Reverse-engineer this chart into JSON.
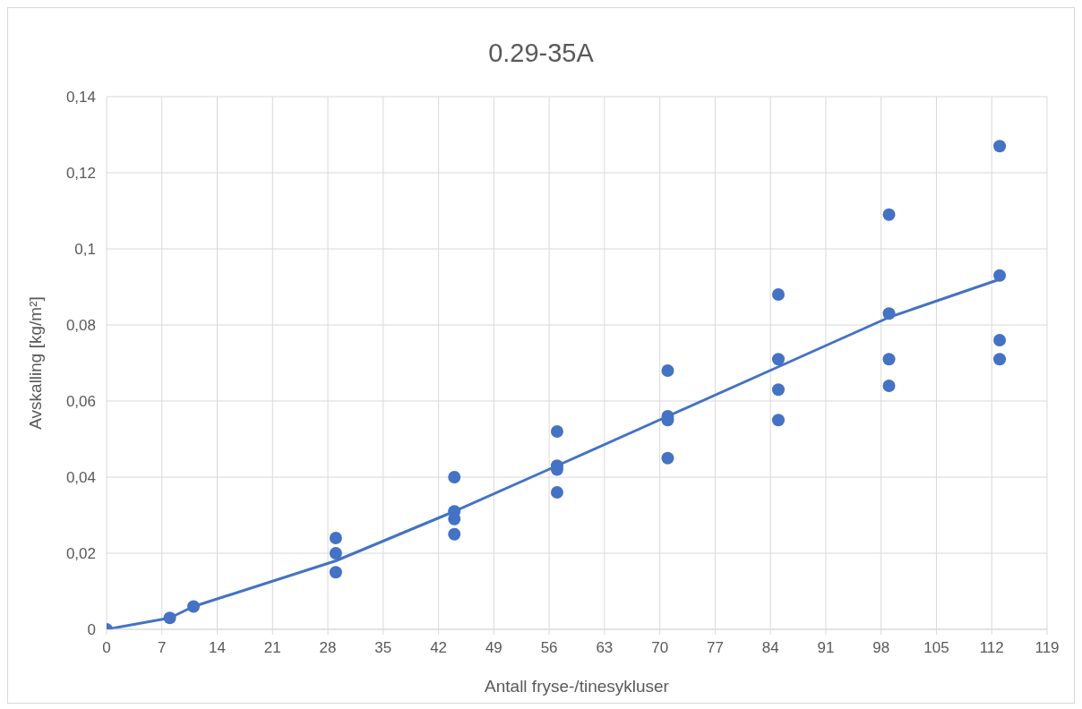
{
  "chart_data": {
    "type": "scatter",
    "title": "0.29-35A",
    "xlabel": "Antall fryse-/tinesykluser",
    "ylabel": "Avskalling [kg/m²]",
    "series": [
      {
        "type": "line",
        "color": "#4472c4",
        "x": [
          0,
          8,
          11,
          29,
          44,
          57,
          71,
          85,
          99,
          113
        ],
        "values": [
          0,
          0.003,
          0.006,
          0.018,
          0.031,
          0.043,
          0.056,
          0.069,
          0.082,
          0.092
        ]
      },
      {
        "color": "#4472c4",
        "marker": "circle",
        "x": [
          0,
          8,
          11,
          29,
          29,
          29,
          44,
          44,
          44,
          44,
          57,
          57,
          57,
          57,
          71,
          71,
          71,
          71,
          85,
          85,
          85,
          85,
          99,
          99,
          99,
          99,
          113,
          113,
          113,
          113
        ],
        "values": [
          0,
          0.003,
          0.006,
          0.024,
          0.02,
          0.015,
          0.04,
          0.031,
          0.029,
          0.025,
          0.052,
          0.043,
          0.042,
          0.036,
          0.068,
          0.056,
          0.055,
          0.045,
          0.088,
          0.071,
          0.063,
          0.055,
          0.109,
          0.083,
          0.071,
          0.064,
          0.127,
          0.093,
          0.076,
          0.071
        ]
      }
    ],
    "xlim": [
      0,
      119
    ],
    "xticks": [
      0,
      7,
      14,
      21,
      28,
      35,
      42,
      49,
      56,
      63,
      70,
      77,
      84,
      91,
      98,
      105,
      112,
      119
    ],
    "ylim": [
      0,
      0.14
    ],
    "yticks": [
      {
        "value": 0,
        "label": "0"
      },
      {
        "value": 0.02,
        "label": "0,02"
      },
      {
        "value": 0.04,
        "label": "0,04"
      },
      {
        "value": 0.06,
        "label": "0,06"
      },
      {
        "value": 0.08,
        "label": "0,08"
      },
      {
        "value": 0.1,
        "label": "0,1"
      },
      {
        "value": 0.12,
        "label": "0,12"
      },
      {
        "value": 0.14,
        "label": "0,14"
      }
    ],
    "grid": true
  }
}
